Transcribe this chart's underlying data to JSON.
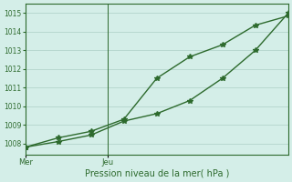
{
  "line1_x": [
    0,
    1,
    2,
    3,
    4,
    5,
    6,
    7,
    8
  ],
  "line1_y": [
    1007.8,
    1008.3,
    1008.65,
    1009.3,
    1011.5,
    1012.65,
    1013.3,
    1014.35,
    1014.85
  ],
  "line2_x": [
    0,
    1,
    2,
    3,
    4,
    5,
    6,
    7,
    8
  ],
  "line2_y": [
    1007.8,
    1008.1,
    1008.45,
    1009.2,
    1009.6,
    1010.3,
    1011.5,
    1013.0,
    1015.0
  ],
  "line_color": "#2d6a2d",
  "bg_color": "#d4eee8",
  "grid_color": "#b8d8d0",
  "xlabel": "Pression niveau de la mer( hPa )",
  "yticks": [
    1008,
    1009,
    1010,
    1011,
    1012,
    1013,
    1014,
    1015
  ],
  "ylim": [
    1007.4,
    1015.5
  ],
  "xlim": [
    0,
    8
  ],
  "mer_x": 0,
  "jeu_x": 2.5,
  "day_labels": [
    [
      "Mer",
      0
    ],
    [
      "Jeu",
      2.5
    ]
  ],
  "marker": "*",
  "markersize": 4,
  "linewidth": 1.0
}
